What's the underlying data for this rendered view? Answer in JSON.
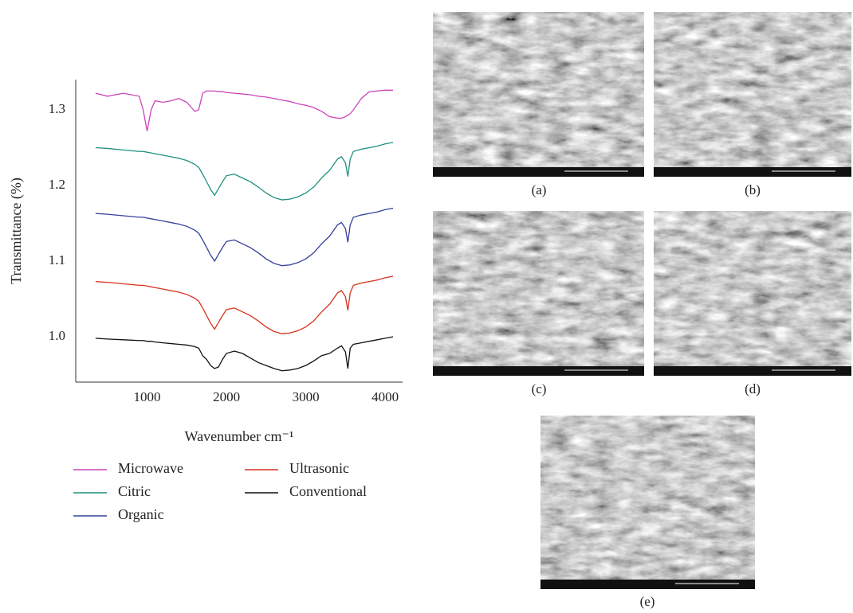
{
  "chart_data": {
    "type": "line",
    "x_label": "Wavenumber cm⁻¹",
    "y_label": "Transmittance (%)",
    "x": [
      350,
      500,
      700,
      900,
      950,
      1000,
      1050,
      1100,
      1200,
      1300,
      1400,
      1500,
      1600,
      1650,
      1700,
      1750,
      1800,
      1850,
      1900,
      1950,
      2000,
      2100,
      2200,
      2300,
      2400,
      2500,
      2600,
      2700,
      2800,
      2900,
      3000,
      3100,
      3200,
      3300,
      3400,
      3450,
      3500,
      3530,
      3560,
      3600,
      3700,
      3800,
      3900,
      4000,
      4100
    ],
    "series": [
      {
        "name": "Microwave",
        "color": "#cc44bb",
        "values": [
          1.322,
          1.318,
          1.322,
          1.318,
          1.3,
          1.272,
          1.3,
          1.312,
          1.31,
          1.312,
          1.315,
          1.31,
          1.298,
          1.3,
          1.322,
          1.325,
          1.325,
          1.325,
          1.324,
          1.324,
          1.323,
          1.322,
          1.321,
          1.32,
          1.318,
          1.317,
          1.315,
          1.313,
          1.311,
          1.308,
          1.306,
          1.303,
          1.298,
          1.291,
          1.289,
          1.289,
          1.291,
          1.293,
          1.295,
          1.3,
          1.315,
          1.324,
          1.325,
          1.326,
          1.326
        ]
      },
      {
        "name": "Citric",
        "color": "#1f9080",
        "values": [
          1.25,
          1.249,
          1.247,
          1.245,
          1.245,
          1.244,
          1.243,
          1.242,
          1.24,
          1.238,
          1.236,
          1.233,
          1.228,
          1.224,
          1.215,
          1.205,
          1.195,
          1.187,
          1.196,
          1.205,
          1.213,
          1.215,
          1.21,
          1.205,
          1.198,
          1.19,
          1.184,
          1.181,
          1.182,
          1.185,
          1.19,
          1.198,
          1.21,
          1.22,
          1.235,
          1.238,
          1.23,
          1.212,
          1.235,
          1.245,
          1.248,
          1.25,
          1.252,
          1.255,
          1.257
        ]
      },
      {
        "name": "Organic",
        "color": "#34409a",
        "values": [
          1.163,
          1.162,
          1.16,
          1.158,
          1.158,
          1.157,
          1.156,
          1.155,
          1.153,
          1.151,
          1.149,
          1.146,
          1.141,
          1.137,
          1.128,
          1.118,
          1.108,
          1.1,
          1.109,
          1.118,
          1.126,
          1.128,
          1.123,
          1.118,
          1.111,
          1.103,
          1.097,
          1.094,
          1.095,
          1.098,
          1.103,
          1.111,
          1.123,
          1.133,
          1.148,
          1.151,
          1.143,
          1.125,
          1.148,
          1.158,
          1.161,
          1.163,
          1.165,
          1.168,
          1.17
        ]
      },
      {
        "name": "Ultrasonic",
        "color": "#d8321e",
        "values": [
          1.073,
          1.072,
          1.07,
          1.068,
          1.068,
          1.067,
          1.066,
          1.065,
          1.063,
          1.061,
          1.059,
          1.056,
          1.051,
          1.047,
          1.038,
          1.028,
          1.018,
          1.01,
          1.019,
          1.028,
          1.036,
          1.038,
          1.033,
          1.028,
          1.021,
          1.013,
          1.007,
          1.004,
          1.005,
          1.008,
          1.013,
          1.021,
          1.033,
          1.043,
          1.058,
          1.061,
          1.053,
          1.035,
          1.058,
          1.068,
          1.071,
          1.073,
          1.075,
          1.078,
          1.08
        ]
      },
      {
        "name": "Conventional",
        "color": "#111111",
        "values": [
          0.998,
          0.997,
          0.996,
          0.995,
          0.995,
          0.994,
          0.994,
          0.993,
          0.992,
          0.991,
          0.99,
          0.989,
          0.987,
          0.985,
          0.975,
          0.97,
          0.962,
          0.958,
          0.96,
          0.97,
          0.978,
          0.981,
          0.978,
          0.972,
          0.966,
          0.962,
          0.958,
          0.955,
          0.956,
          0.958,
          0.962,
          0.968,
          0.975,
          0.978,
          0.985,
          0.988,
          0.98,
          0.958,
          0.985,
          0.99,
          0.992,
          0.994,
          0.996,
          0.998,
          1.0
        ]
      }
    ],
    "xlim": [
      100,
      4200
    ],
    "xticks": [
      1000,
      2000,
      3000,
      4000
    ],
    "ylim": [
      0.94,
      1.34
    ],
    "yticks": [
      {
        "value": 1,
        "label": "1.0"
      },
      1.1,
      1.2,
      1.3
    ],
    "grid": false
  },
  "figure_panels": {
    "labels": [
      "(a)",
      "(b)",
      "(c)",
      "(d)",
      "(e)"
    ]
  }
}
